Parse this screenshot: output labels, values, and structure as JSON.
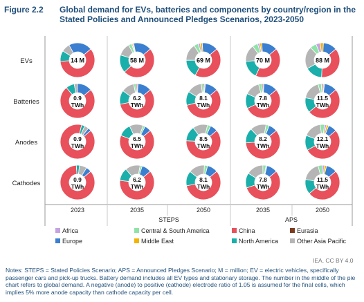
{
  "header": {
    "figure_label": "Figure 2.2",
    "title": "Global demand for EVs, batteries and components by country/region in the Stated Policies and Announced Pledges Scenarios, 2023-2050"
  },
  "chart_data": {
    "type": "pie",
    "variant": "donut-grid",
    "rows": [
      "EVs",
      "Batteries",
      "Anodes",
      "Cathodes"
    ],
    "columns": [
      "2023",
      "2035",
      "2050",
      "2035",
      "2050"
    ],
    "scenarios": [
      {
        "label": "STEPS",
        "columns": [
          1,
          2
        ]
      },
      {
        "label": "APS",
        "columns": [
          3,
          4
        ]
      }
    ],
    "regions": [
      "Africa",
      "Central & South America",
      "China",
      "Eurasia",
      "Europe",
      "Middle East",
      "North America",
      "Other Asia Pacific"
    ],
    "colors": {
      "Africa": "#c5a3e0",
      "Central & South America": "#8fe3a6",
      "China": "#e8505b",
      "Eurasia": "#7b3b1e",
      "Europe": "#3a7fd0",
      "Middle East": "#f2b400",
      "North America": "#1aafaa",
      "Other Asia Pacific": "#b5b5b5"
    },
    "center_labels": [
      [
        "14 M",
        "58 M",
        "69 M",
        "70 M",
        "88 M"
      ],
      [
        "0.9 TWh",
        "6.2 TWh",
        "8.1 TWh",
        "7.8 TWh",
        "11.5 TWh"
      ],
      [
        "0.9 TWh",
        "6.5 TWh",
        "8.5 TWh",
        "8.2 TWh",
        "12.1 TWh"
      ],
      [
        "0.9 TWh",
        "6.2 TWh",
        "8.1 TWh",
        "7.8 TWh",
        "11.5 TWh"
      ]
    ],
    "shares": [
      [
        {
          "China": 60,
          "Europe": 22,
          "North America": 10,
          "Other Asia Pacific": 8
        },
        {
          "China": 49,
          "Europe": 17,
          "North America": 17,
          "Other Asia Pacific": 12,
          "Central & South America": 3,
          "Middle East": 1,
          "Africa": 1
        },
        {
          "China": 44,
          "Europe": 15,
          "North America": 17,
          "Other Asia Pacific": 16,
          "Central & South America": 4,
          "Middle East": 2,
          "Africa": 2
        },
        {
          "China": 43,
          "Europe": 15,
          "North America": 17,
          "Other Asia Pacific": 16,
          "Central & South America": 5,
          "Middle East": 2,
          "Africa": 2
        },
        {
          "China": 37,
          "Europe": 13,
          "North America": 16,
          "Other Asia Pacific": 21,
          "Central & South America": 6,
          "Middle East": 3,
          "Africa": 4
        }
      ],
      [
        {
          "China": 75,
          "Europe": 14,
          "North America": 8,
          "Other Asia Pacific": 3
        },
        {
          "China": 58,
          "Europe": 13,
          "North America": 13,
          "Other Asia Pacific": 12,
          "Central & South America": 2,
          "Eurasia": 1,
          "Africa": 1
        },
        {
          "China": 57,
          "Europe": 12,
          "North America": 13,
          "Other Asia Pacific": 14,
          "Central & South America": 2,
          "Eurasia": 1,
          "Africa": 1
        },
        {
          "China": 54,
          "Europe": 13,
          "North America": 14,
          "Other Asia Pacific": 14,
          "Central & South America": 3,
          "Eurasia": 1,
          "Africa": 1
        },
        {
          "China": 50,
          "Europe": 12,
          "North America": 14,
          "Other Asia Pacific": 18,
          "Central & South America": 3,
          "Middle East": 1,
          "Africa": 2
        }
      ],
      [
        {
          "China": 90,
          "Europe": 3,
          "North America": 3,
          "Other Asia Pacific": 4
        },
        {
          "China": 67,
          "Europe": 6,
          "North America": 12,
          "Other Asia Pacific": 13,
          "Central & South America": 2
        },
        {
          "China": 62,
          "Europe": 7,
          "North America": 14,
          "Other Asia Pacific": 14,
          "Central & South America": 3
        },
        {
          "China": 60,
          "Europe": 8,
          "North America": 14,
          "Other Asia Pacific": 15,
          "Central & South America": 3
        },
        {
          "China": 53,
          "Europe": 8,
          "North America": 14,
          "Other Asia Pacific": 17,
          "Central & South America": 4,
          "Middle East": 2,
          "Africa": 2
        }
      ],
      [
        {
          "China": 85,
          "Europe": 5,
          "North America": 3,
          "Other Asia Pacific": 7
        },
        {
          "China": 63,
          "Europe": 9,
          "North America": 12,
          "Other Asia Pacific": 14,
          "Central & South America": 2
        },
        {
          "China": 58,
          "Europe": 10,
          "North America": 14,
          "Other Asia Pacific": 15,
          "Central & South America": 3
        },
        {
          "China": 56,
          "Europe": 10,
          "North America": 14,
          "Other Asia Pacific": 16,
          "Central & South America": 3,
          "Africa": 1
        },
        {
          "China": 50,
          "Europe": 10,
          "North America": 14,
          "Other Asia Pacific": 18,
          "Central & South America": 4,
          "Middle East": 2,
          "Africa": 2
        }
      ]
    ]
  },
  "notes": "Notes: STEPS = Stated Policies Scenario; APS = Announced Pledges Scenario; M = million; EV = electric vehicles, specifically passenger cars and pick-up trucks. Battery demand includes all EV types and stationary storage. The number in the middle of the pie chart refers to global demand. A negative (anode) to positive (cathode) electrode ratio of 1.05 is assumed for the final cells, which implies 5% more anode capacity than cathode capacity per cell.",
  "credit": "IEA. CC BY 4.0"
}
